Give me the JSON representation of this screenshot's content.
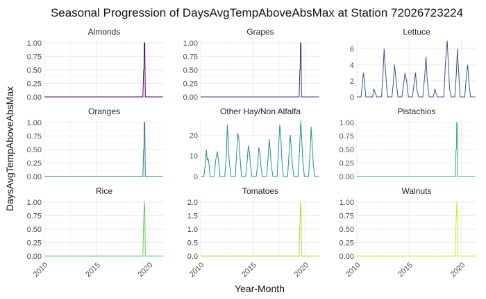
{
  "chart_data": {
    "type": "line",
    "title": "Seasonal Progression of DaysAvgTempAboveAbsMax at Station 72026723224",
    "xlabel": "Year-Month",
    "ylabel": "DaysAvgTempAboveAbsMax",
    "xlim": [
      2010,
      2021.4
    ],
    "x_ticks": [
      2010,
      2015,
      2020
    ],
    "x_tick_labels": [
      "2010",
      "2015",
      "2020"
    ],
    "grid": true,
    "legend": "none",
    "layout": {
      "rows": 3,
      "cols": 3
    },
    "panels": [
      {
        "name": "Almonds",
        "color": "#440154",
        "ylim": [
          0,
          1.05
        ],
        "y_ticks": [
          0,
          0.25,
          0.5,
          0.75,
          1.0
        ],
        "y_tick_labels": [
          "0.00",
          "0.25",
          "0.50",
          "0.75",
          "1.00"
        ],
        "series": {
          "x": [
            2010.0,
            2019.4,
            2019.47,
            2019.5,
            2019.53,
            2019.58,
            2019.63,
            2019.7,
            2021.3
          ],
          "y": [
            0,
            0,
            0.5,
            0.5,
            1.0,
            1.0,
            0,
            0,
            0
          ]
        }
      },
      {
        "name": "Grapes",
        "color": "#472d7b",
        "ylim": [
          0,
          1.05
        ],
        "y_ticks": [
          0,
          0.25,
          0.5,
          0.75,
          1.0
        ],
        "y_tick_labels": [
          "0.00",
          "0.25",
          "0.50",
          "0.75",
          "1.00"
        ],
        "series": {
          "x": [
            2010.0,
            2019.4,
            2019.47,
            2019.5,
            2019.53,
            2019.58,
            2019.63,
            2019.7,
            2021.3
          ],
          "y": [
            0,
            0,
            0.5,
            0.5,
            1.0,
            1.0,
            0,
            0,
            0
          ]
        }
      },
      {
        "name": "Lettuce",
        "color": "#3b528b",
        "ylim": [
          0,
          7.1
        ],
        "y_ticks": [
          0,
          2,
          4,
          6
        ],
        "y_tick_labels": [
          "0",
          "2",
          "4",
          "6"
        ],
        "series": {
          "x": [
            2010.0,
            2010.4,
            2010.55,
            2010.63,
            2010.72,
            2010.85,
            2011.0,
            2011.5,
            2011.62,
            2011.75,
            2011.9,
            2012.0,
            2012.35,
            2012.5,
            2012.6,
            2012.75,
            2012.92,
            2013.0,
            2013.35,
            2013.5,
            2013.6,
            2013.75,
            2013.92,
            2014.0,
            2014.3,
            2014.5,
            2014.6,
            2014.75,
            2014.92,
            2015.0,
            2015.3,
            2015.5,
            2015.6,
            2015.72,
            2015.9,
            2016.0,
            2016.3,
            2016.5,
            2016.6,
            2016.72,
            2016.9,
            2017.0,
            2017.3,
            2017.45,
            2017.55,
            2017.68,
            2017.85,
            2018.0,
            2018.3,
            2018.45,
            2018.55,
            2018.63,
            2018.7,
            2018.85,
            2019.0,
            2019.35,
            2019.5,
            2019.6,
            2019.68,
            2019.85,
            2020.0,
            2020.3,
            2020.48,
            2020.58,
            2020.68,
            2020.85,
            2021.0,
            2021.3
          ],
          "y": [
            0,
            0,
            2,
            3,
            2,
            0,
            0,
            0,
            1,
            0.5,
            0,
            0,
            0,
            3,
            6,
            3,
            0,
            0,
            0,
            2,
            4,
            2,
            0,
            0,
            0,
            2,
            3,
            2,
            0,
            0,
            0,
            2,
            3,
            1,
            0,
            0,
            0,
            3,
            5,
            2,
            0,
            0,
            0,
            1,
            0.5,
            0,
            0,
            0,
            0,
            4,
            6,
            7,
            5,
            1,
            0,
            0,
            3,
            6,
            4,
            0,
            0,
            0,
            3,
            4,
            2,
            0,
            0,
            0
          ]
        }
      },
      {
        "name": "Oranges",
        "color": "#2c728e",
        "ylim": [
          0,
          1.05
        ],
        "y_ticks": [
          0,
          0.25,
          0.5,
          0.75,
          1.0
        ],
        "y_tick_labels": [
          "0.00",
          "0.25",
          "0.50",
          "0.75",
          "1.00"
        ],
        "series": {
          "x": [
            2010.0,
            2019.4,
            2019.47,
            2019.5,
            2019.53,
            2019.58,
            2019.63,
            2019.7,
            2021.3
          ],
          "y": [
            0,
            0,
            0.5,
            0.5,
            1.0,
            1.0,
            0,
            0,
            0
          ]
        }
      },
      {
        "name": "Other Hay/Non Alfalfa",
        "color": "#21908d",
        "ylim": [
          0,
          27.5
        ],
        "y_ticks": [
          0,
          10,
          20
        ],
        "y_tick_labels": [
          "0",
          "10",
          "20"
        ],
        "series": {
          "x": [
            2010.0,
            2010.3,
            2010.45,
            2010.55,
            2010.62,
            2010.7,
            2010.8,
            2010.9,
            2011.0,
            2011.3,
            2011.4,
            2011.5,
            2011.6,
            2011.7,
            2011.85,
            2012.0,
            2012.3,
            2012.45,
            2012.55,
            2012.65,
            2012.72,
            2012.9,
            2013.0,
            2013.3,
            2013.45,
            2013.55,
            2013.65,
            2013.75,
            2013.9,
            2014.0,
            2014.3,
            2014.45,
            2014.55,
            2014.65,
            2014.75,
            2014.9,
            2015.0,
            2015.3,
            2015.45,
            2015.55,
            2015.65,
            2015.75,
            2015.9,
            2016.0,
            2016.3,
            2016.45,
            2016.55,
            2016.65,
            2016.75,
            2016.9,
            2017.0,
            2017.3,
            2017.45,
            2017.55,
            2017.65,
            2017.75,
            2017.9,
            2018.0,
            2018.3,
            2018.45,
            2018.55,
            2018.65,
            2018.75,
            2018.9,
            2019.0,
            2019.3,
            2019.45,
            2019.55,
            2019.65,
            2019.75,
            2019.9,
            2020.0,
            2020.3,
            2020.45,
            2020.55,
            2020.65,
            2020.75,
            2020.9,
            2021.0,
            2021.3
          ],
          "y": [
            0,
            0,
            6,
            13,
            8,
            9,
            6,
            0,
            0,
            0,
            6,
            10,
            12,
            8,
            0,
            0,
            0,
            10,
            25,
            15,
            8,
            0,
            0,
            0,
            12,
            21,
            18,
            10,
            0,
            0,
            0,
            8,
            15,
            12,
            6,
            0,
            0,
            0,
            6,
            14,
            12,
            5,
            0,
            0,
            0,
            10,
            18,
            12,
            5,
            0,
            0,
            0,
            15,
            25,
            20,
            8,
            0,
            0,
            0,
            12,
            20,
            14,
            6,
            0,
            0,
            0,
            14,
            27,
            18,
            8,
            0,
            0,
            0,
            12,
            24,
            15,
            6,
            0,
            0,
            0
          ]
        }
      },
      {
        "name": "Pistachios",
        "color": "#27ad81",
        "ylim": [
          0,
          1.05
        ],
        "y_ticks": [
          0,
          0.25,
          0.5,
          0.75,
          1.0
        ],
        "y_tick_labels": [
          "0.00",
          "0.25",
          "0.50",
          "0.75",
          "1.00"
        ],
        "series": {
          "x": [
            2010.0,
            2019.4,
            2019.47,
            2019.5,
            2019.53,
            2019.58,
            2019.63,
            2019.7,
            2021.3
          ],
          "y": [
            0,
            0,
            0.5,
            0.5,
            1.0,
            1.0,
            0,
            0,
            0
          ]
        }
      },
      {
        "name": "Rice",
        "color": "#5dc863",
        "ylim": [
          0,
          1.05
        ],
        "y_ticks": [
          0,
          0.25,
          0.5,
          0.75,
          1.0
        ],
        "y_tick_labels": [
          "0.00",
          "0.25",
          "0.50",
          "0.75",
          "1.00"
        ],
        "series": {
          "x": [
            2010.0,
            2019.4,
            2019.45,
            2019.5,
            2019.54,
            2019.58,
            2019.63,
            2019.7,
            2021.3
          ],
          "y": [
            0,
            0,
            0.5,
            0.8,
            1.0,
            0.9,
            0,
            0,
            0
          ]
        }
      },
      {
        "name": "Tomatoes",
        "color": "#aadc32",
        "ylim": [
          0,
          2.1
        ],
        "y_ticks": [
          0,
          0.5,
          1.0,
          1.5,
          2.0
        ],
        "y_tick_labels": [
          "0.0",
          "0.5",
          "1.0",
          "1.5",
          "2.0"
        ],
        "series": {
          "x": [
            2010.0,
            2019.4,
            2019.45,
            2019.5,
            2019.54,
            2019.58,
            2019.63,
            2019.7,
            2021.3
          ],
          "y": [
            0,
            0,
            1.0,
            1.5,
            2.0,
            1.8,
            0,
            0,
            0
          ]
        }
      },
      {
        "name": "Walnuts",
        "color": "#d8e219",
        "ylim": [
          0,
          1.05
        ],
        "y_ticks": [
          0,
          0.25,
          0.5,
          0.75,
          1.0
        ],
        "y_tick_labels": [
          "0.00",
          "0.25",
          "0.50",
          "0.75",
          "1.00"
        ],
        "series": {
          "x": [
            2010.0,
            2019.4,
            2019.45,
            2019.5,
            2019.54,
            2019.58,
            2019.63,
            2019.7,
            2021.3
          ],
          "y": [
            0,
            0,
            0.5,
            0.8,
            1.0,
            0.7,
            0,
            0,
            0
          ]
        }
      }
    ]
  }
}
